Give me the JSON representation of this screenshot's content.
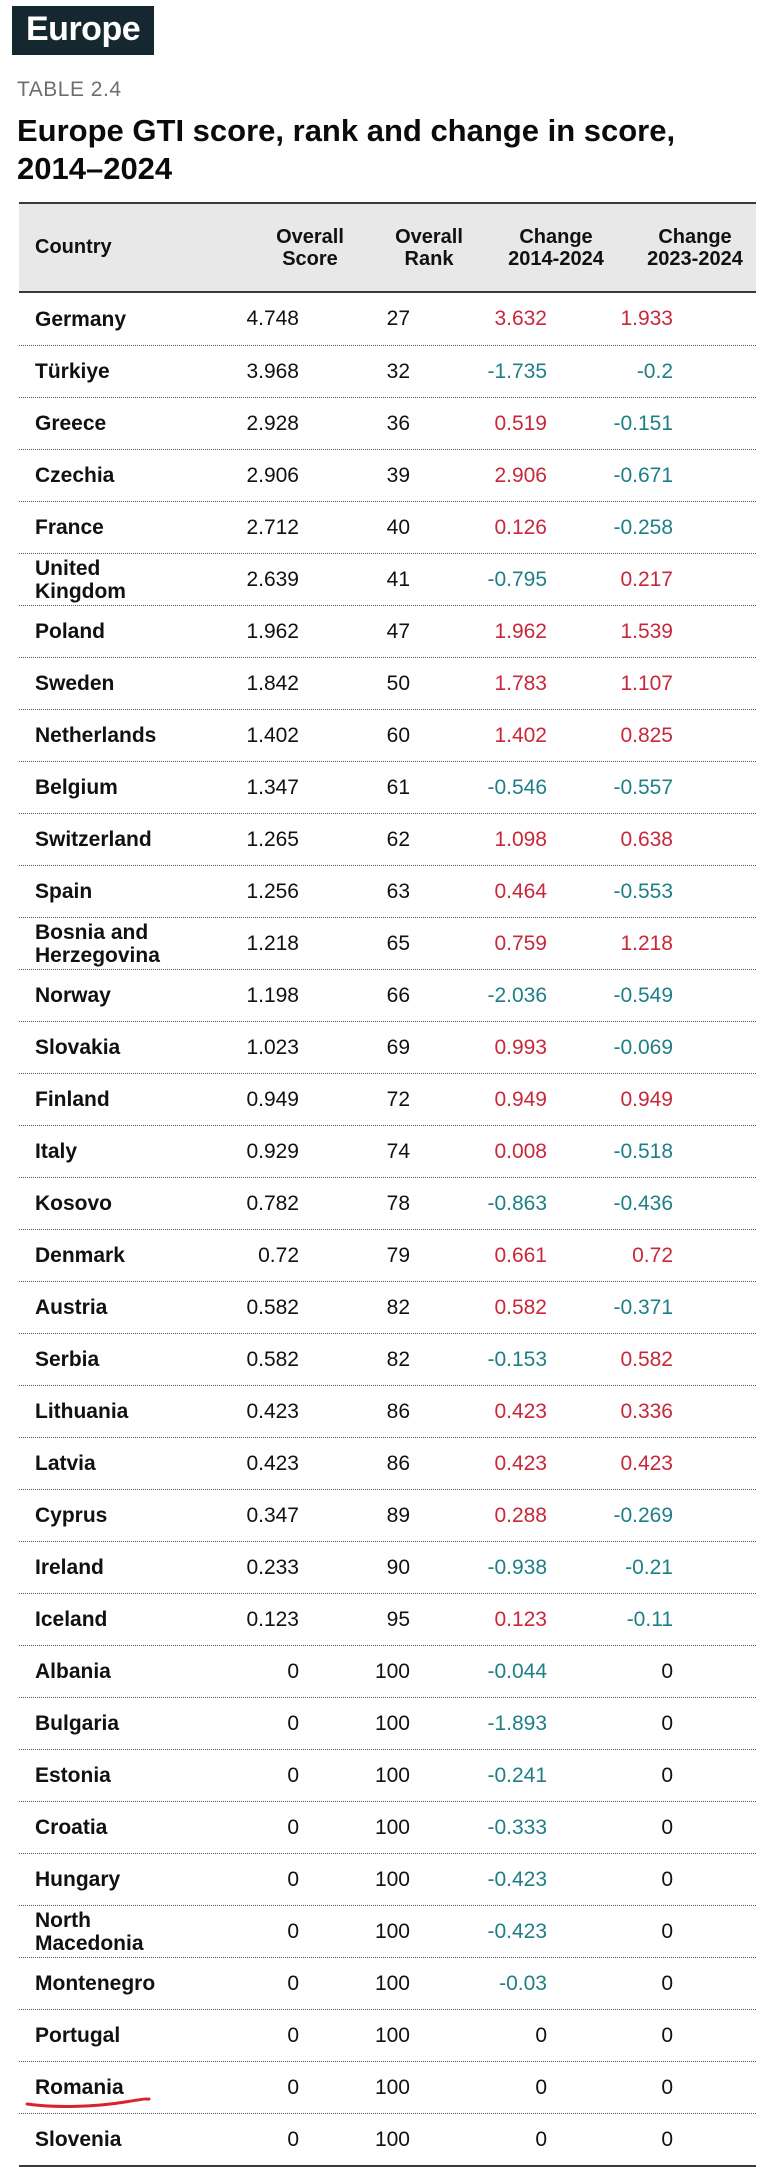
{
  "region_tag": "Europe",
  "table_number": "TABLE 2.4",
  "title": "Europe GTI score, rank and change in score, 2014–2024",
  "columns": {
    "country": "Country",
    "score_l1": "Overall",
    "score_l2": "Score",
    "rank_l1": "Overall",
    "rank_l2": "Rank",
    "ch1_l1": "Change",
    "ch1_l2": "2014-2024",
    "ch2_l1": "Change",
    "ch2_l2": "2023-2024"
  },
  "colors": {
    "positive_change": "#c8283a",
    "negative_change": "#1e7f86",
    "header_bg": "#e8e8e8",
    "tag_bg": "#16282f",
    "annotation_red": "#d8232a"
  },
  "rows": [
    {
      "country": "Germany",
      "score": "4.748",
      "rank": "27",
      "change_2014_2024": "3.632",
      "change_2023_2024": "1.933"
    },
    {
      "country": "Türkiye",
      "score": "3.968",
      "rank": "32",
      "change_2014_2024": "-1.735",
      "change_2023_2024": "-0.2"
    },
    {
      "country": "Greece",
      "score": "2.928",
      "rank": "36",
      "change_2014_2024": "0.519",
      "change_2023_2024": "-0.151"
    },
    {
      "country": "Czechia",
      "score": "2.906",
      "rank": "39",
      "change_2014_2024": "2.906",
      "change_2023_2024": "-0.671"
    },
    {
      "country": "France",
      "score": "2.712",
      "rank": "40",
      "change_2014_2024": "0.126",
      "change_2023_2024": "-0.258"
    },
    {
      "country": "United Kingdom",
      "score": "2.639",
      "rank": "41",
      "change_2014_2024": "-0.795",
      "change_2023_2024": "0.217"
    },
    {
      "country": "Poland",
      "score": "1.962",
      "rank": "47",
      "change_2014_2024": "1.962",
      "change_2023_2024": "1.539"
    },
    {
      "country": "Sweden",
      "score": "1.842",
      "rank": "50",
      "change_2014_2024": "1.783",
      "change_2023_2024": "1.107"
    },
    {
      "country": "Netherlands",
      "score": "1.402",
      "rank": "60",
      "change_2014_2024": "1.402",
      "change_2023_2024": "0.825"
    },
    {
      "country": "Belgium",
      "score": "1.347",
      "rank": "61",
      "change_2014_2024": "-0.546",
      "change_2023_2024": "-0.557"
    },
    {
      "country": "Switzerland",
      "score": "1.265",
      "rank": "62",
      "change_2014_2024": "1.098",
      "change_2023_2024": "0.638"
    },
    {
      "country": "Spain",
      "score": "1.256",
      "rank": "63",
      "change_2014_2024": "0.464",
      "change_2023_2024": "-0.553"
    },
    {
      "country": "Bosnia and Herzegovina",
      "score": "1.218",
      "rank": "65",
      "change_2014_2024": "0.759",
      "change_2023_2024": "1.218"
    },
    {
      "country": "Norway",
      "score": "1.198",
      "rank": "66",
      "change_2014_2024": "-2.036",
      "change_2023_2024": "-0.549"
    },
    {
      "country": "Slovakia",
      "score": "1.023",
      "rank": "69",
      "change_2014_2024": "0.993",
      "change_2023_2024": "-0.069"
    },
    {
      "country": "Finland",
      "score": "0.949",
      "rank": "72",
      "change_2014_2024": "0.949",
      "change_2023_2024": "0.949"
    },
    {
      "country": "Italy",
      "score": "0.929",
      "rank": "74",
      "change_2014_2024": "0.008",
      "change_2023_2024": "-0.518"
    },
    {
      "country": "Kosovo",
      "score": "0.782",
      "rank": "78",
      "change_2014_2024": "-0.863",
      "change_2023_2024": "-0.436"
    },
    {
      "country": "Denmark",
      "score": "0.72",
      "rank": "79",
      "change_2014_2024": "0.661",
      "change_2023_2024": "0.72"
    },
    {
      "country": "Austria",
      "score": "0.582",
      "rank": "82",
      "change_2014_2024": "0.582",
      "change_2023_2024": "-0.371"
    },
    {
      "country": "Serbia",
      "score": "0.582",
      "rank": "82",
      "change_2014_2024": "-0.153",
      "change_2023_2024": "0.582"
    },
    {
      "country": "Lithuania",
      "score": "0.423",
      "rank": "86",
      "change_2014_2024": "0.423",
      "change_2023_2024": "0.336"
    },
    {
      "country": "Latvia",
      "score": "0.423",
      "rank": "86",
      "change_2014_2024": "0.423",
      "change_2023_2024": "0.423"
    },
    {
      "country": "Cyprus",
      "score": "0.347",
      "rank": "89",
      "change_2014_2024": "0.288",
      "change_2023_2024": "-0.269"
    },
    {
      "country": "Ireland",
      "score": "0.233",
      "rank": "90",
      "change_2014_2024": "-0.938",
      "change_2023_2024": "-0.21"
    },
    {
      "country": "Iceland",
      "score": "0.123",
      "rank": "95",
      "change_2014_2024": "0.123",
      "change_2023_2024": "-0.11"
    },
    {
      "country": "Albania",
      "score": "0",
      "rank": "100",
      "change_2014_2024": "-0.044",
      "change_2023_2024": "0"
    },
    {
      "country": "Bulgaria",
      "score": "0",
      "rank": "100",
      "change_2014_2024": "-1.893",
      "change_2023_2024": "0"
    },
    {
      "country": "Estonia",
      "score": "0",
      "rank": "100",
      "change_2014_2024": "-0.241",
      "change_2023_2024": "0"
    },
    {
      "country": "Croatia",
      "score": "0",
      "rank": "100",
      "change_2014_2024": "-0.333",
      "change_2023_2024": "0"
    },
    {
      "country": "Hungary",
      "score": "0",
      "rank": "100",
      "change_2014_2024": "-0.423",
      "change_2023_2024": "0"
    },
    {
      "country": "North Macedonia",
      "score": "0",
      "rank": "100",
      "change_2014_2024": "-0.423",
      "change_2023_2024": "0"
    },
    {
      "country": "Montenegro",
      "score": "0",
      "rank": "100",
      "change_2014_2024": "-0.03",
      "change_2023_2024": "0"
    },
    {
      "country": "Portugal",
      "score": "0",
      "rank": "100",
      "change_2014_2024": "0",
      "change_2023_2024": "0"
    },
    {
      "country": "Romania",
      "score": "0",
      "rank": "100",
      "change_2014_2024": "0",
      "change_2023_2024": "0",
      "highlighted": true
    },
    {
      "country": "Slovenia",
      "score": "0",
      "rank": "100",
      "change_2014_2024": "0",
      "change_2023_2024": "0"
    }
  ]
}
